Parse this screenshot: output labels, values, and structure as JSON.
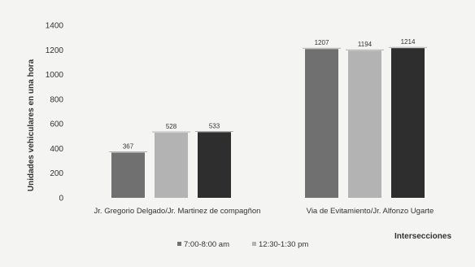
{
  "chart_data": {
    "type": "bar",
    "categories": [
      "Jr. Gregorio Delgado/Jr. Martinez de compagñon",
      "Via de Evitamiento/Jr. Alfonzo Ugarte"
    ],
    "series": [
      {
        "name": "7:00-8:00 am",
        "values": [
          367,
          1207
        ],
        "color": "#707070"
      },
      {
        "name": "12:30-1:30 pm",
        "values": [
          528,
          1194
        ],
        "color": "#b3b3b3"
      },
      {
        "name": "",
        "values": [
          533,
          1214
        ],
        "color": "#2e2e2e"
      }
    ],
    "data_labels": [
      [
        "367",
        "1207"
      ],
      [
        "528",
        "1194"
      ],
      [
        "533",
        "1214"
      ]
    ],
    "xlabel": "Intersecciones",
    "ylabel": "Unidades vehiculares en una hora",
    "ylim": [
      0,
      1400
    ],
    "yticks": [
      0,
      200,
      400,
      600,
      800,
      1000,
      1200,
      1400
    ],
    "grid": false,
    "legend_position": "bottom"
  }
}
